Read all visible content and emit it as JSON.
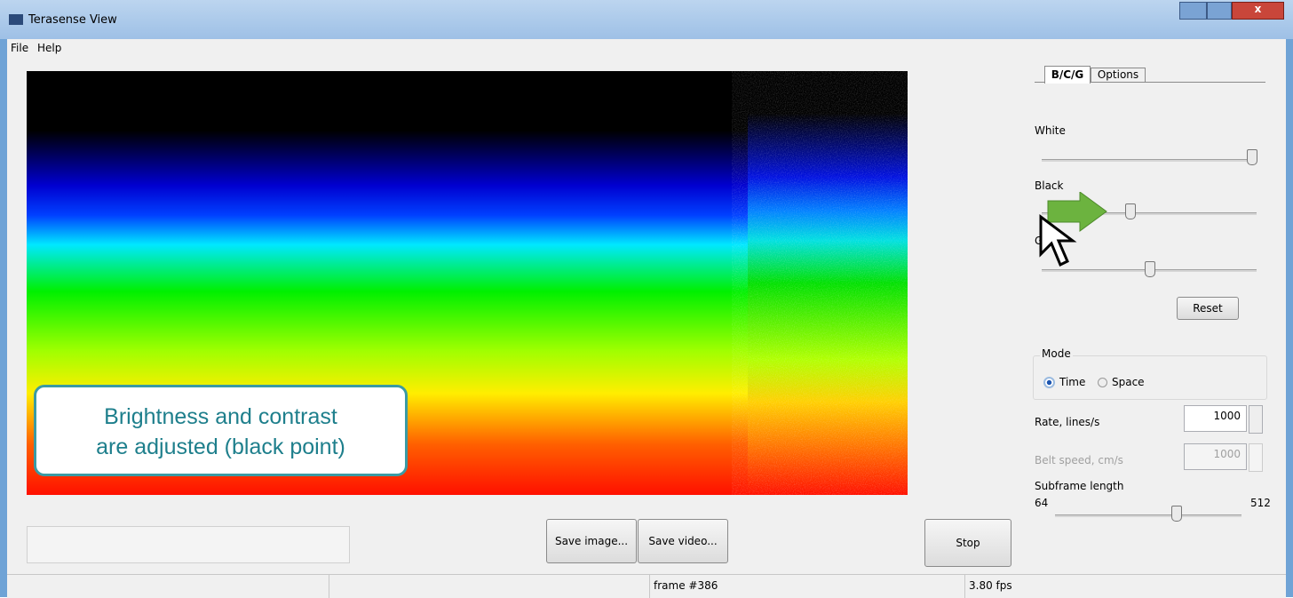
{
  "window": {
    "title": "Terasense View",
    "close": "x"
  },
  "menu": [
    "File",
    "Help"
  ],
  "tabs": [
    "B/C/G",
    "Options"
  ],
  "sliders": {
    "white": "White",
    "black": "Black",
    "gamma": "G"
  },
  "reset": "Reset",
  "mode": {
    "label": "Mode",
    "options": [
      "Time",
      "Space"
    ]
  },
  "rate": {
    "label": "Rate, lines/s",
    "value": "1000"
  },
  "belt_speed": {
    "label": "Belt speed, cm/s",
    "value": "1000"
  },
  "subframe": {
    "label": "Subframe length",
    "min": "64",
    "max": "512"
  },
  "buttons": {
    "save_image": "Save image...",
    "save_video": "Save video...",
    "stop": "Stop"
  },
  "status": {
    "frame": "frame #386",
    "fps": "3.80 fps"
  },
  "callout": [
    "Brightness and contrast",
    "are adjusted (black point)"
  ]
}
